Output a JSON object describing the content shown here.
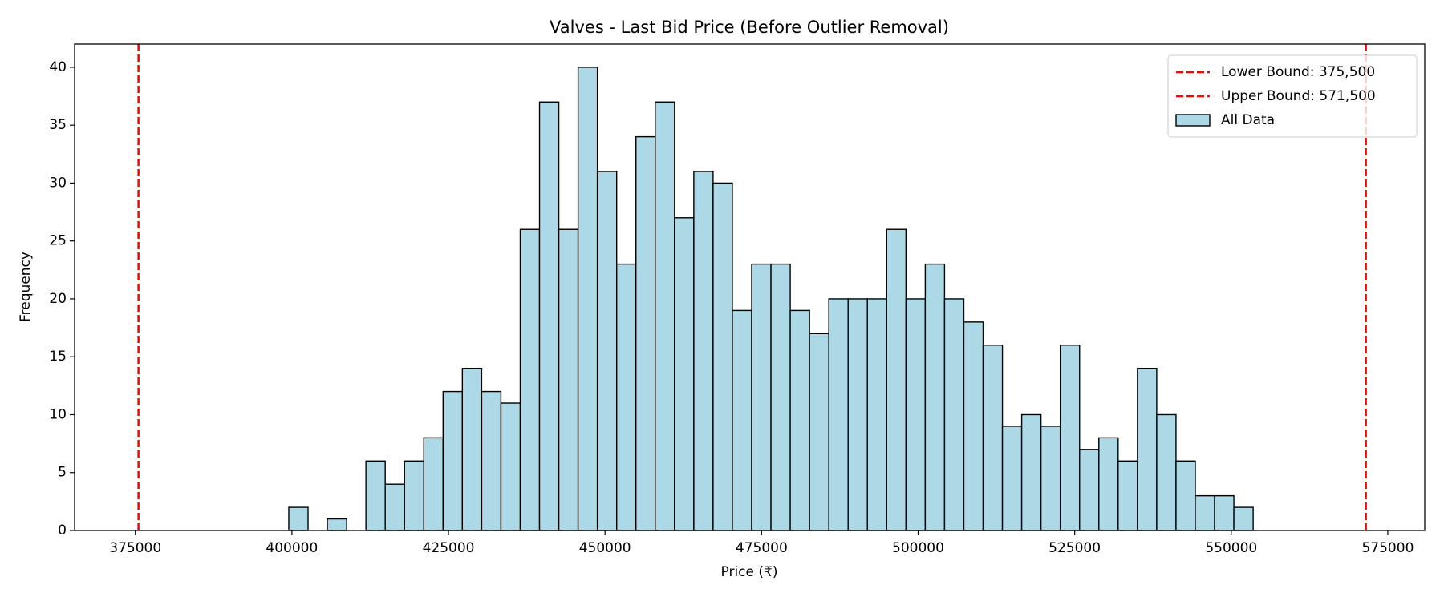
{
  "chart_data": {
    "type": "histogram",
    "title": "Valves - Last Bid Price (Before Outlier Removal)",
    "xlabel": "Price (₹)",
    "ylabel": "Frequency",
    "bins": [
      399500,
      402580,
      405660,
      408740,
      411820,
      414900,
      417980,
      421060,
      424140,
      427220,
      430300,
      433380,
      436460,
      439540,
      442620,
      445700,
      448780,
      451860,
      454940,
      458020,
      461100,
      464180,
      467260,
      470340,
      473420,
      476500,
      479580,
      482660,
      485740,
      488820,
      491900,
      494980,
      498060,
      501140,
      504220,
      507300,
      510380,
      513460,
      516540,
      519620,
      522700,
      525780,
      528860,
      531940,
      535020,
      538100,
      541180,
      544260,
      547340,
      550420,
      553500
    ],
    "series": [
      {
        "name": "All Data",
        "color": "#add8e6",
        "edgecolor": "#000000",
        "values": [
          2,
          0,
          1,
          0,
          6,
          4,
          6,
          8,
          12,
          14,
          12,
          11,
          26,
          37,
          26,
          40,
          31,
          23,
          34,
          37,
          27,
          31,
          30,
          19,
          23,
          23,
          19,
          17,
          20,
          20,
          20,
          26,
          20,
          23,
          20,
          18,
          16,
          9,
          10,
          9,
          16,
          7,
          8,
          6,
          14,
          10,
          6,
          3,
          3,
          2
        ]
      }
    ],
    "vlines": [
      {
        "name": "Lower Bound: 375,500",
        "value": 375500,
        "color": "#ff0000"
      },
      {
        "name": "Upper Bound: 571,500",
        "value": 571500,
        "color": "#ff0000"
      }
    ],
    "xlim": [
      365300,
      580900
    ],
    "ylim": [
      0,
      42
    ],
    "xticks": [
      375000,
      400000,
      425000,
      450000,
      475000,
      500000,
      525000,
      550000,
      575000
    ],
    "yticks": [
      0,
      5,
      10,
      15,
      20,
      25,
      30,
      35,
      40
    ],
    "legend": "upper right"
  }
}
